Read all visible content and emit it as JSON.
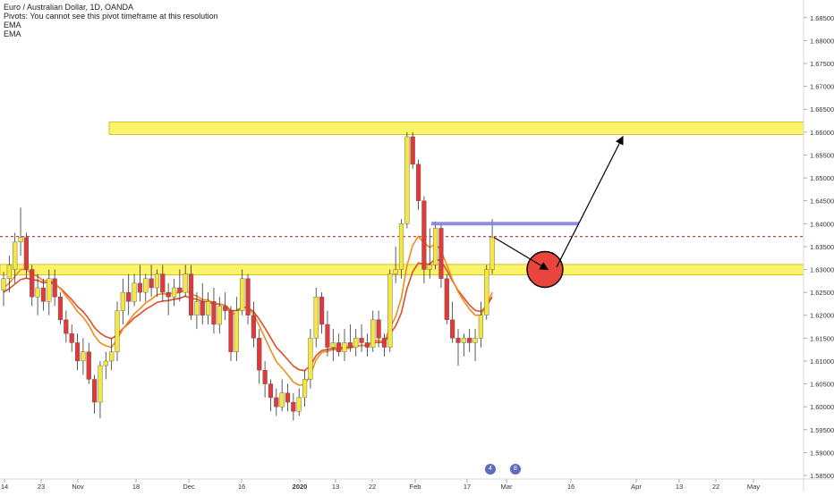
{
  "legend": {
    "symbol": "Euro / Australian Dollar, 1D, OANDA",
    "pivots": "Pivots: You cannot see this pivot timeframe at this resolution",
    "ema1": "EMA",
    "ema2": "EMA"
  },
  "colors": {
    "up": "#f5e642",
    "down": "#e03a3a",
    "wick": "#333333",
    "ema_fast": "#f08c1c",
    "ema_slow": "#e04e2a",
    "zone_fill": "#fdf36b",
    "zone_border": "#c8b400",
    "resistance_line": "#7b7bd6",
    "dashed_level": "#e03a3a",
    "target_circle": "#e8453c",
    "arrow": "#000000"
  },
  "events": [
    "4",
    "8"
  ],
  "chart_data": {
    "type": "candlestick",
    "x_tick_labels": [
      "14",
      "23",
      "Nov",
      "18",
      "Dec",
      "16",
      "2020",
      "13",
      "22",
      "Feb",
      "17",
      "Mar",
      "16",
      "Apr",
      "13",
      "22",
      "May"
    ],
    "y_tick_labels": [
      "1.68500",
      "1.68000",
      "1.67500",
      "1.67000",
      "1.66500",
      "1.66000",
      "1.65500",
      "1.65000",
      "1.64500",
      "1.64000",
      "1.63500",
      "1.63000",
      "1.62500",
      "1.62000",
      "1.61500",
      "1.61000",
      "1.60500",
      "1.60000",
      "1.59500",
      "1.59000",
      "1.58500"
    ],
    "ylim": [
      1.585,
      1.6875
    ],
    "candles": [
      [
        1.6255,
        1.6295,
        1.622,
        1.628
      ],
      [
        1.628,
        1.633,
        1.625,
        1.631
      ],
      [
        1.63,
        1.638,
        1.627,
        1.636
      ],
      [
        1.636,
        1.6435,
        1.633,
        1.637
      ],
      [
        1.637,
        1.638,
        1.628,
        1.63
      ],
      [
        1.63,
        1.631,
        1.622,
        1.624
      ],
      [
        1.624,
        1.629,
        1.62,
        1.626
      ],
      [
        1.626,
        1.628,
        1.621,
        1.623
      ],
      [
        1.623,
        1.63,
        1.62,
        1.628
      ],
      [
        1.628,
        1.63,
        1.622,
        1.624
      ],
      [
        1.624,
        1.625,
        1.618,
        1.619
      ],
      [
        1.619,
        1.621,
        1.614,
        1.616
      ],
      [
        1.616,
        1.618,
        1.612,
        1.614
      ],
      [
        1.614,
        1.616,
        1.608,
        1.61
      ],
      [
        1.61,
        1.615,
        1.607,
        1.612
      ],
      [
        1.612,
        1.614,
        1.605,
        1.606
      ],
      [
        1.606,
        1.607,
        1.5985,
        1.601
      ],
      [
        1.601,
        1.61,
        1.5975,
        1.609
      ],
      [
        1.609,
        1.612,
        1.606,
        1.61
      ],
      [
        1.61,
        1.615,
        1.608,
        1.612
      ],
      [
        1.612,
        1.623,
        1.61,
        1.621
      ],
      [
        1.621,
        1.628,
        1.618,
        1.625
      ],
      [
        1.625,
        1.629,
        1.62,
        1.623
      ],
      [
        1.623,
        1.629,
        1.622,
        1.627
      ],
      [
        1.627,
        1.631,
        1.623,
        1.625
      ],
      [
        1.625,
        1.629,
        1.623,
        1.628
      ],
      [
        1.628,
        1.631,
        1.624,
        1.626
      ],
      [
        1.626,
        1.63,
        1.624,
        1.629
      ],
      [
        1.629,
        1.631,
        1.623,
        1.625
      ],
      [
        1.625,
        1.627,
        1.62,
        1.624
      ],
      [
        1.624,
        1.628,
        1.622,
        1.626
      ],
      [
        1.626,
        1.63,
        1.623,
        1.625
      ],
      [
        1.625,
        1.631,
        1.624,
        1.629
      ],
      [
        1.629,
        1.631,
        1.619,
        1.62
      ],
      [
        1.62,
        1.625,
        1.617,
        1.623
      ],
      [
        1.623,
        1.627,
        1.618,
        1.62
      ],
      [
        1.62,
        1.625,
        1.618,
        1.623
      ],
      [
        1.623,
        1.626,
        1.616,
        1.618
      ],
      [
        1.618,
        1.624,
        1.616,
        1.622
      ],
      [
        1.622,
        1.625,
        1.619,
        1.621
      ],
      [
        1.621,
        1.622,
        1.61,
        1.612
      ],
      [
        1.612,
        1.624,
        1.61,
        1.621
      ],
      [
        1.621,
        1.63,
        1.62,
        1.628
      ],
      [
        1.628,
        1.629,
        1.618,
        1.62
      ],
      [
        1.62,
        1.623,
        1.613,
        1.615
      ],
      [
        1.615,
        1.617,
        1.605,
        1.608
      ],
      [
        1.608,
        1.61,
        1.602,
        1.605
      ],
      [
        1.605,
        1.606,
        1.599,
        1.602
      ],
      [
        1.602,
        1.604,
        1.598,
        1.6
      ],
      [
        1.6,
        1.606,
        1.599,
        1.603
      ],
      [
        1.603,
        1.605,
        1.599,
        1.601
      ],
      [
        1.601,
        1.603,
        1.597,
        1.599
      ],
      [
        1.599,
        1.604,
        1.598,
        1.602
      ],
      [
        1.602,
        1.608,
        1.6,
        1.606
      ],
      [
        1.606,
        1.617,
        1.604,
        1.615
      ],
      [
        1.615,
        1.626,
        1.613,
        1.624
      ],
      [
        1.624,
        1.625,
        1.616,
        1.618
      ],
      [
        1.618,
        1.621,
        1.611,
        1.613
      ],
      [
        1.613,
        1.617,
        1.61,
        1.614
      ],
      [
        1.614,
        1.616,
        1.611,
        1.612
      ],
      [
        1.612,
        1.617,
        1.61,
        1.614
      ],
      [
        1.614,
        1.618,
        1.612,
        1.613
      ],
      [
        1.613,
        1.617,
        1.611,
        1.615
      ],
      [
        1.615,
        1.618,
        1.612,
        1.614
      ],
      [
        1.614,
        1.616,
        1.611,
        1.613
      ],
      [
        1.613,
        1.621,
        1.612,
        1.619
      ],
      [
        1.619,
        1.621,
        1.613,
        1.615
      ],
      [
        1.615,
        1.616,
        1.611,
        1.613
      ],
      [
        1.613,
        1.63,
        1.612,
        1.629
      ],
      [
        1.629,
        1.635,
        1.627,
        1.63
      ],
      [
        1.63,
        1.641,
        1.628,
        1.64
      ],
      [
        1.64,
        1.66,
        1.639,
        1.659
      ],
      [
        1.659,
        1.66,
        1.652,
        1.653
      ],
      [
        1.653,
        1.654,
        1.643,
        1.645
      ],
      [
        1.645,
        1.646,
        1.627,
        1.63
      ],
      [
        1.63,
        1.639,
        1.628,
        1.631
      ],
      [
        1.631,
        1.6405,
        1.63,
        1.639
      ],
      [
        1.639,
        1.64,
        1.626,
        1.628
      ],
      [
        1.628,
        1.629,
        1.618,
        1.619
      ],
      [
        1.619,
        1.623,
        1.614,
        1.615
      ],
      [
        1.615,
        1.617,
        1.609,
        1.614
      ],
      [
        1.614,
        1.616,
        1.611,
        1.615
      ],
      [
        1.615,
        1.617,
        1.612,
        1.614
      ],
      [
        1.614,
        1.617,
        1.61,
        1.615
      ],
      [
        1.615,
        1.623,
        1.613,
        1.62
      ],
      [
        1.62,
        1.631,
        1.619,
        1.63
      ],
      [
        1.63,
        1.641,
        1.629,
        1.637
      ]
    ],
    "ema_fast": [
      1.626,
      1.627,
      1.6285,
      1.63,
      1.63,
      1.629,
      1.6285,
      1.6275,
      1.6276,
      1.627,
      1.6258,
      1.6242,
      1.6226,
      1.6208,
      1.6196,
      1.6178,
      1.6155,
      1.614,
      1.6133,
      1.613,
      1.6147,
      1.617,
      1.6186,
      1.6203,
      1.6214,
      1.6227,
      1.6235,
      1.6245,
      1.6247,
      1.6246,
      1.6249,
      1.6249,
      1.6256,
      1.6246,
      1.6242,
      1.6234,
      1.6233,
      1.6226,
      1.6225,
      1.6222,
      1.6203,
      1.6204,
      1.6219,
      1.6215,
      1.6202,
      1.6177,
      1.615,
      1.6124,
      1.6099,
      1.6085,
      1.607,
      1.6054,
      1.6047,
      1.6049,
      1.6069,
      1.6103,
      1.6119,
      1.6121,
      1.6125,
      1.6124,
      1.6127,
      1.6128,
      1.6132,
      1.6134,
      1.6133,
      1.6144,
      1.6145,
      1.6142,
      1.6172,
      1.6197,
      1.6238,
      1.6308,
      1.6353,
      1.6372,
      1.6358,
      1.6348,
      1.6356,
      1.6341,
      1.631,
      1.6278,
      1.6251,
      1.6231,
      1.6213,
      1.62,
      1.62,
      1.622,
      1.625
    ],
    "ema_slow": [
      1.625,
      1.6258,
      1.6268,
      1.6278,
      1.6281,
      1.6278,
      1.6276,
      1.6271,
      1.6272,
      1.6268,
      1.6259,
      1.6247,
      1.6234,
      1.6219,
      1.6208,
      1.6192,
      1.6173,
      1.6161,
      1.6153,
      1.6149,
      1.6157,
      1.6171,
      1.6182,
      1.6194,
      1.6203,
      1.6213,
      1.622,
      1.6228,
      1.6231,
      1.6232,
      1.6235,
      1.6237,
      1.6242,
      1.6237,
      1.6235,
      1.623,
      1.6229,
      1.6225,
      1.6224,
      1.6222,
      1.621,
      1.621,
      1.6218,
      1.6216,
      1.6208,
      1.6191,
      1.6172,
      1.6151,
      1.613,
      1.6117,
      1.6103,
      1.6089,
      1.6081,
      1.6079,
      1.609,
      1.6112,
      1.6123,
      1.6125,
      1.6128,
      1.6128,
      1.613,
      1.613,
      1.6133,
      1.6134,
      1.6134,
      1.614,
      1.6141,
      1.614,
      1.6159,
      1.6176,
      1.6205,
      1.6258,
      1.6295,
      1.6314,
      1.6312,
      1.6312,
      1.6323,
      1.6318,
      1.6298,
      1.6275,
      1.6254,
      1.6238,
      1.6222,
      1.6211,
      1.6208,
      1.622,
      1.624
    ],
    "grid": false
  }
}
